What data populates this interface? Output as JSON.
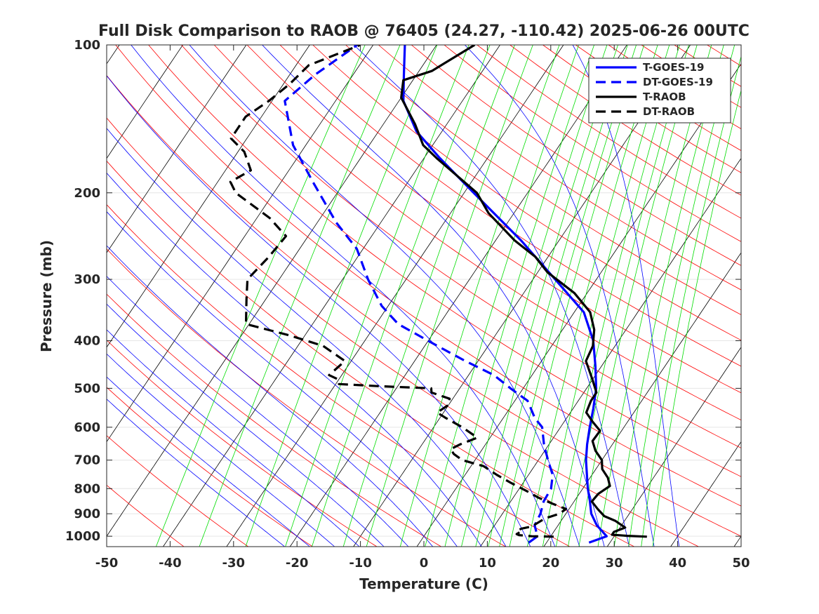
{
  "chart_data": {
    "type": "line",
    "title": "Full Disk Comparison to RAOB @ 76405 (24.27, -110.42) 2025-06-26 00UTC",
    "xlabel": "Temperature (C)",
    "ylabel": "Pressure (mb)",
    "xlim": [
      -50,
      50
    ],
    "ylim": [
      1050,
      100
    ],
    "y_scale": "log",
    "skew_deg_per_decade": 52,
    "xticks": [
      -50,
      -40,
      -30,
      -20,
      -10,
      0,
      10,
      20,
      30,
      40,
      50
    ],
    "xtick_labels": [
      "-50",
      "-40",
      "-30",
      "-20",
      "-10",
      "0",
      "10",
      "20",
      "30",
      "40",
      "50"
    ],
    "yticks": [
      1000,
      900,
      800,
      700,
      600,
      500,
      400,
      300,
      200,
      100
    ],
    "ytick_labels": [
      "1000",
      "900",
      "800",
      "700",
      "600",
      "500",
      "400",
      "300",
      "200",
      "100"
    ],
    "legend_position": "top-right",
    "series": [
      {
        "name": "T-GOES-19",
        "color": "#0000ff",
        "dash": "solid",
        "points": [
          [
            1030,
            26.7
          ],
          [
            1000,
            28.8
          ],
          [
            950,
            26.1
          ],
          [
            900,
            24.0
          ],
          [
            850,
            22.5
          ],
          [
            800,
            20.8
          ],
          [
            750,
            19.2
          ],
          [
            700,
            17.5
          ],
          [
            650,
            16.0
          ],
          [
            600,
            14.6
          ],
          [
            550,
            13.2
          ],
          [
            500,
            11.5
          ],
          [
            450,
            9.0
          ],
          [
            400,
            6.0
          ],
          [
            350,
            1.5
          ],
          [
            300,
            -6.5
          ],
          [
            250,
            -16.0
          ],
          [
            200,
            -28.5
          ],
          [
            170,
            -37.5
          ],
          [
            150,
            -44.0
          ],
          [
            130,
            -49.3
          ],
          [
            115,
            -52.0
          ],
          [
            100,
            -55.0
          ]
        ]
      },
      {
        "name": "DT-GOES-19",
        "color": "#0000ff",
        "dash": "dashed",
        "points": [
          [
            1030,
            17.2
          ],
          [
            1000,
            17.9
          ],
          [
            950,
            16.3
          ],
          [
            900,
            16.0
          ],
          [
            850,
            15.2
          ],
          [
            800,
            15.0
          ],
          [
            750,
            13.8
          ],
          [
            700,
            11.5
          ],
          [
            650,
            9.2
          ],
          [
            600,
            7.1
          ],
          [
            575,
            5.0
          ],
          [
            530,
            2.0
          ],
          [
            500,
            -2.0
          ],
          [
            470,
            -6.0
          ],
          [
            440,
            -12.0
          ],
          [
            410,
            -18.0
          ],
          [
            370,
            -26.5
          ],
          [
            340,
            -31.0
          ],
          [
            300,
            -36.0
          ],
          [
            260,
            -41.0
          ],
          [
            230,
            -47.0
          ],
          [
            190,
            -55.0
          ],
          [
            160,
            -62.0
          ],
          [
            130,
            -68.0
          ],
          [
            115,
            -66.0
          ],
          [
            100,
            -62.5
          ]
        ]
      },
      {
        "name": "T-RAOB",
        "color": "#000000",
        "dash": "solid",
        "points": [
          [
            1002,
            35.2
          ],
          [
            998,
            32.0
          ],
          [
            993,
            29.5
          ],
          [
            980,
            29.5
          ],
          [
            960,
            30.8
          ],
          [
            930,
            28.5
          ],
          [
            910,
            26.3
          ],
          [
            880,
            24.5
          ],
          [
            850,
            22.8
          ],
          [
            820,
            23.0
          ],
          [
            790,
            24.0
          ],
          [
            760,
            22.8
          ],
          [
            730,
            21.0
          ],
          [
            700,
            20.0
          ],
          [
            670,
            18.0
          ],
          [
            640,
            16.5
          ],
          [
            610,
            16.6
          ],
          [
            585,
            14.5
          ],
          [
            560,
            12.5
          ],
          [
            530,
            12.0
          ],
          [
            510,
            12.0
          ],
          [
            480,
            10.0
          ],
          [
            440,
            7.0
          ],
          [
            410,
            6.5
          ],
          [
            380,
            5.0
          ],
          [
            350,
            2.5
          ],
          [
            320,
            -2.0
          ],
          [
            290,
            -8.5
          ],
          [
            270,
            -12.0
          ],
          [
            250,
            -17.0
          ],
          [
            220,
            -24.0
          ],
          [
            200,
            -28.0
          ],
          [
            170,
            -38.0
          ],
          [
            160,
            -41.5
          ],
          [
            145,
            -45.0
          ],
          [
            128,
            -50.0
          ],
          [
            118,
            -51.5
          ],
          [
            113,
            -48.0
          ],
          [
            100,
            -44.0
          ]
        ]
      },
      {
        "name": "DT-RAOB",
        "color": "#000000",
        "dash": "dashed",
        "points": [
          [
            1002,
            20.5
          ],
          [
            1000,
            17.0
          ],
          [
            995,
            14.9
          ],
          [
            990,
            14.4
          ],
          [
            985,
            14.6
          ],
          [
            975,
            14.0
          ],
          [
            965,
            14.6
          ],
          [
            955,
            16.0
          ],
          [
            940,
            16.5
          ],
          [
            920,
            17.2
          ],
          [
            900,
            19.0
          ],
          [
            880,
            19.5
          ],
          [
            860,
            17.0
          ],
          [
            835,
            14.0
          ],
          [
            810,
            11.5
          ],
          [
            780,
            8.2
          ],
          [
            750,
            5.0
          ],
          [
            720,
            2.0
          ],
          [
            700,
            -2.0
          ],
          [
            680,
            -4.0
          ],
          [
            665,
            -5.0
          ],
          [
            650,
            -4.0
          ],
          [
            630,
            -2.0
          ],
          [
            600,
            -5.5
          ],
          [
            575,
            -9.0
          ],
          [
            560,
            -11.0
          ],
          [
            540,
            -10.0
          ],
          [
            525,
            -10.5
          ],
          [
            510,
            -14.0
          ],
          [
            500,
            -14.5
          ],
          [
            495,
            -23.0
          ],
          [
            490,
            -29.5
          ],
          [
            480,
            -30.0
          ],
          [
            470,
            -32.0
          ],
          [
            440,
            -31.0
          ],
          [
            410,
            -36.0
          ],
          [
            390,
            -42.5
          ],
          [
            370,
            -50.5
          ],
          [
            330,
            -53.0
          ],
          [
            300,
            -55.0
          ],
          [
            270,
            -54.0
          ],
          [
            245,
            -53.5
          ],
          [
            225,
            -58.0
          ],
          [
            200,
            -66.0
          ],
          [
            190,
            -68.0
          ],
          [
            180,
            -66.0
          ],
          [
            165,
            -69.0
          ],
          [
            155,
            -72.5
          ],
          [
            140,
            -72.5
          ],
          [
            130,
            -70.5
          ],
          [
            120,
            -69.0
          ],
          [
            110,
            -68.0
          ],
          [
            100,
            -62.0
          ]
        ]
      }
    ]
  }
}
